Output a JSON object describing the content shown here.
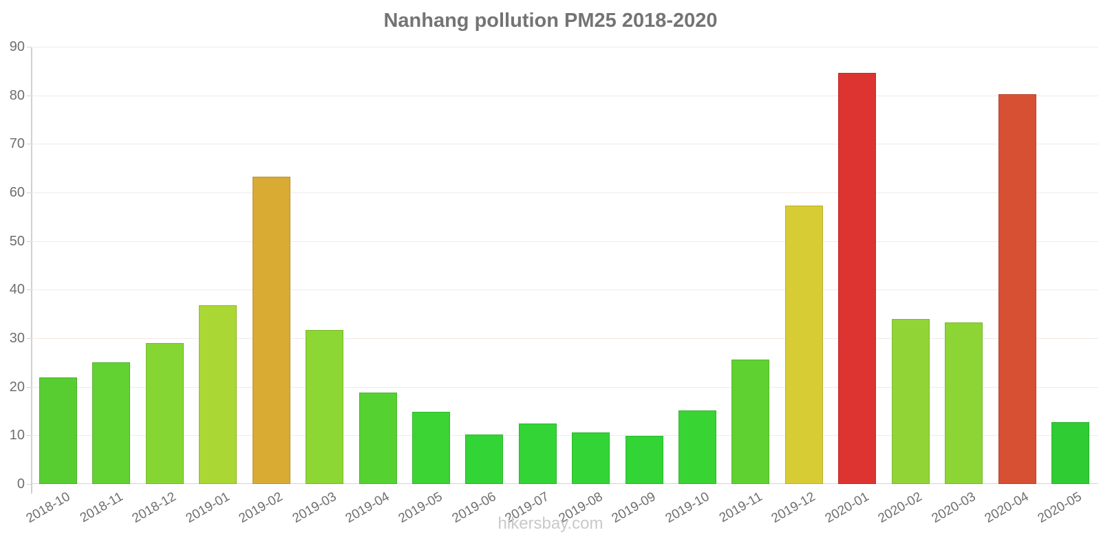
{
  "title": "Nanhang pollution PM25 2018-2020",
  "watermark": "hikersbay.com",
  "chart_data": {
    "type": "bar",
    "title": "Nanhang pollution PM25 2018-2020",
    "xlabel": "",
    "ylabel": "",
    "ylim": [
      0,
      90
    ],
    "yticks": [
      0,
      10,
      20,
      30,
      40,
      50,
      60,
      70,
      80,
      90
    ],
    "grid": true,
    "legend": false,
    "categories": [
      "2018-10",
      "2018-11",
      "2018-12",
      "2019-01",
      "2019-02",
      "2019-03",
      "2019-04",
      "2019-05",
      "2019-06",
      "2019-07",
      "2019-08",
      "2019-09",
      "2019-10",
      "2019-11",
      "2019-12",
      "2020-01",
      "2020-02",
      "2020-03",
      "2020-04",
      "2020-05"
    ],
    "values": [
      22,
      25,
      29,
      36.8,
      63.2,
      31.7,
      18.8,
      14.9,
      10.2,
      12.4,
      10.6,
      9.9,
      15.2,
      25.6,
      57.3,
      84.6,
      33.9,
      33.2,
      80.2,
      12.8
    ],
    "bar_colors": [
      "#58cd32",
      "#62d132",
      "#86d633",
      "#aad733",
      "#d9ab33",
      "#8cd733",
      "#55d232",
      "#3bd434",
      "#33d435",
      "#33d435",
      "#33d435",
      "#33d435",
      "#38d434",
      "#5fd232",
      "#d8cc34",
      "#dd3431",
      "#90d535",
      "#8cd535",
      "#d85034",
      "#2fcd33"
    ]
  },
  "colors": {
    "title_text": "#747474",
    "axis_text": "#6e6e6e",
    "axis_line": "#cfcfcf",
    "gridline": "#f2eae4",
    "watermark": "#c9c9c9",
    "background": "#ffffff"
  }
}
